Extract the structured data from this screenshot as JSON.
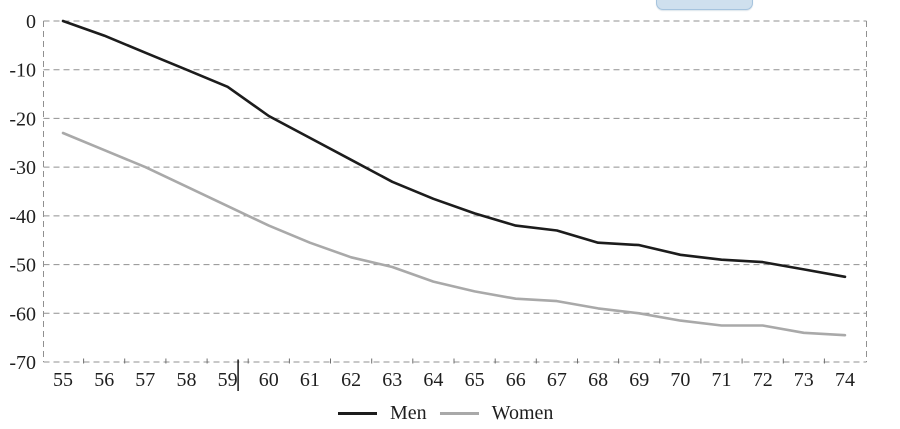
{
  "widgets": {
    "partial_button_visible": true,
    "partial_button_color": "#cfe0ee"
  },
  "annotations": {
    "caret_after_label": "59"
  },
  "chart_data": {
    "type": "line",
    "title": "",
    "xlabel": "",
    "ylabel": "",
    "categories": [
      "55",
      "56",
      "57",
      "58",
      "59",
      "60",
      "61",
      "62",
      "63",
      "64",
      "65",
      "66",
      "67",
      "68",
      "69",
      "70",
      "71",
      "72",
      "73",
      "74"
    ],
    "series": [
      {
        "name": "Men",
        "color": "#1c1c1c",
        "values": [
          0,
          -3,
          -6.5,
          -10,
          -13.5,
          -19.5,
          -24,
          -28.5,
          -33,
          -36.5,
          -39.5,
          -42,
          -43,
          -45.5,
          -46,
          -48,
          -49,
          -49.5,
          -51,
          -52.5
        ]
      },
      {
        "name": "Women",
        "color": "#a9a9a9",
        "values": [
          -23,
          -26.5,
          -30,
          -34,
          -38,
          -42,
          -45.5,
          -48.5,
          -50.5,
          -53.5,
          -55.5,
          -57,
          -57.5,
          -59,
          -60,
          -61.5,
          -62.5,
          -62.5,
          -64,
          -64.5
        ]
      }
    ],
    "ylim": [
      -70,
      0
    ],
    "yticks": [
      0,
      -10,
      -20,
      -30,
      -40,
      -50,
      -60,
      -70
    ],
    "grid": "horizontal dashed gridlines, dashed plot frame, x ticks between categories",
    "legend_position": "bottom-center",
    "legend": [
      "Men",
      "Women"
    ]
  }
}
